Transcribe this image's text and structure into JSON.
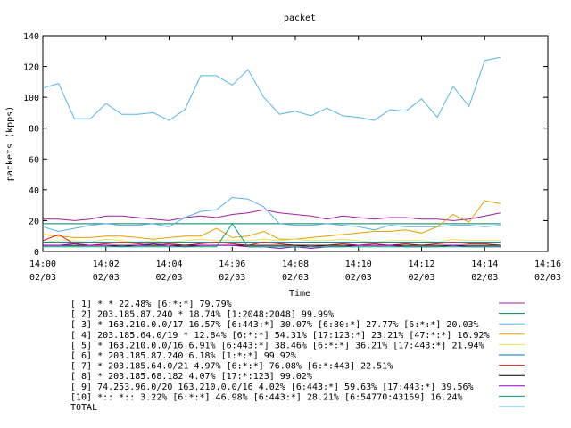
{
  "chart_data": {
    "type": "line",
    "title": "packet",
    "xlabel": "Time",
    "ylabel": "packets (kpps)",
    "ylim": [
      0,
      140
    ],
    "yticks": [
      0,
      20,
      40,
      60,
      80,
      100,
      120,
      140
    ],
    "xlim": [
      0,
      16
    ],
    "xticks": [
      {
        "v": 0,
        "t": "14:00",
        "d": "02/03"
      },
      {
        "v": 2,
        "t": "14:02",
        "d": "02/03"
      },
      {
        "v": 4,
        "t": "14:04",
        "d": "02/03"
      },
      {
        "v": 6,
        "t": "14:06",
        "d": "02/03"
      },
      {
        "v": 8,
        "t": "14:08",
        "d": "02/03"
      },
      {
        "v": 10,
        "t": "14:10",
        "d": "02/03"
      },
      {
        "v": 12,
        "t": "14:12",
        "d": "02/03"
      },
      {
        "v": 14,
        "t": "14:14",
        "d": "02/03"
      },
      {
        "v": 16,
        "t": "14:16",
        "d": "02/03"
      }
    ],
    "x": [
      0,
      0.5,
      1,
      1.5,
      2,
      2.5,
      3,
      3.5,
      4,
      4.5,
      5,
      5.5,
      6,
      6.5,
      7,
      7.5,
      8,
      8.5,
      9,
      9.5,
      10,
      10.5,
      11,
      11.5,
      12,
      12.5,
      13,
      13.5,
      14,
      14.5
    ],
    "legend_position": "bottom",
    "grid": false,
    "series": [
      {
        "name": "[ 1] * * 22.48%  [6:*:*] 79.79%",
        "color": "#a020a0",
        "values": [
          21,
          21,
          20,
          21,
          23,
          23,
          22,
          21,
          20,
          22,
          23,
          22,
          24,
          25,
          27,
          25,
          24,
          23,
          21,
          23,
          22,
          21,
          22,
          22,
          21,
          21,
          20,
          21,
          23,
          25
        ]
      },
      {
        "name": "[ 2] 203.185.87.240 * 18.74%  [1:2048:2048] 99.99%",
        "color": "#008060",
        "values": [
          18,
          18,
          18,
          18,
          18,
          18,
          18,
          18,
          18,
          18,
          18,
          18,
          18,
          18,
          18,
          18,
          18,
          18,
          18,
          18,
          18,
          18,
          18,
          18,
          18,
          18,
          18,
          18,
          18,
          18
        ]
      },
      {
        "name": "[ 3] * 163.210.0.0/17 16.57%  [6:443:*] 30.07% [6:80:*] 27.77% [6:*:*] 20.03%",
        "color": "#56b4e9",
        "values": [
          16,
          13,
          15,
          17,
          18,
          17,
          17,
          18,
          16,
          22,
          26,
          27,
          35,
          34,
          29,
          18,
          17,
          17,
          18,
          17,
          16,
          14,
          17,
          16,
          16,
          16,
          17,
          17,
          16,
          17
        ]
      },
      {
        "name": "[ 4] 203.185.64.0/19 * 12.84%  [6:*:*] 54.31% [17:123:*] 23.21% [47:*:*] 16.92%",
        "color": "#e69f00",
        "values": [
          11,
          10,
          9,
          9,
          10,
          10,
          9,
          8,
          9,
          10,
          10,
          15,
          9,
          10,
          13,
          8,
          8,
          9,
          10,
          11,
          12,
          13,
          13,
          14,
          12,
          16,
          24,
          19,
          33,
          31
        ]
      },
      {
        "name": "[ 5] * 163.210.0.0/16 6.91%  [6:443:*] 38.46% [6:*:*] 36.21% [17:443:*] 21.94%",
        "color": "#f0e442",
        "values": [
          6,
          7,
          7,
          6,
          8,
          7,
          6,
          7,
          6,
          7,
          8,
          7,
          7,
          7,
          8,
          7,
          8,
          7,
          7,
          8,
          7,
          6,
          7,
          7,
          7,
          6,
          8,
          7,
          7,
          7
        ]
      },
      {
        "name": "[ 6] * 203.185.87.240 6.18%  [1:*:*] 99.92%",
        "color": "#0072b2",
        "values": [
          6,
          6,
          6,
          6,
          6,
          6,
          6,
          6,
          6,
          6,
          6,
          6,
          6,
          6,
          6,
          6,
          6,
          6,
          6,
          6,
          6,
          6,
          6,
          6,
          6,
          6,
          6,
          6,
          6,
          6
        ]
      },
      {
        "name": "[ 7] * 203.185.64.0/21 4.97%  [6:*:*] 76.08% [6:*:443] 22.51%",
        "color": "#e51e10",
        "values": [
          7,
          11,
          5,
          4,
          5,
          6,
          5,
          4,
          5,
          4,
          5,
          6,
          5,
          4,
          6,
          5,
          4,
          3,
          4,
          5,
          4,
          5,
          4,
          5,
          4,
          5,
          6,
          5,
          5,
          4
        ]
      },
      {
        "name": "[ 8] * 203.185.68.182 4.07%  [17:*:123] 99.02%",
        "color": "#000000",
        "values": [
          4,
          4,
          4,
          4,
          4,
          4,
          4,
          4,
          4,
          4,
          4,
          4,
          4,
          4,
          4,
          4,
          4,
          4,
          4,
          4,
          4,
          4,
          4,
          4,
          4,
          4,
          4,
          4,
          4,
          4
        ]
      },
      {
        "name": "[ 9] 74.253.96.0/20 163.210.0.0/16 4.02%  [6:443:*] 59.63% [17:443:*] 39.56%",
        "color": "#9400d3",
        "values": [
          4,
          4,
          5,
          4,
          4,
          3,
          4,
          5,
          4,
          3,
          4,
          4,
          4,
          3,
          3,
          2,
          3,
          2,
          3,
          3,
          4,
          4,
          4,
          3,
          3,
          3,
          4,
          3,
          3,
          3
        ]
      },
      {
        "name": "[10] *:: *:: 3.22%  [6:*:*] 46.98% [6:443:*] 28.21% [6:54770:43169] 16.24%",
        "color": "#009e73",
        "values": [
          3,
          3,
          3,
          3,
          3,
          3,
          3,
          3,
          3,
          3,
          3,
          3,
          18,
          3,
          3,
          3,
          3,
          3,
          3,
          3,
          3,
          3,
          3,
          3,
          3,
          3,
          3,
          3,
          3,
          3
        ]
      },
      {
        "name": "TOTAL",
        "color": "#56b4e9",
        "values": [
          106,
          109,
          86,
          86,
          96,
          89,
          89,
          90,
          85,
          92,
          114,
          114,
          108,
          118,
          100,
          89,
          91,
          88,
          93,
          88,
          87,
          85,
          92,
          91,
          99,
          87,
          107,
          94,
          124,
          126
        ]
      }
    ]
  }
}
